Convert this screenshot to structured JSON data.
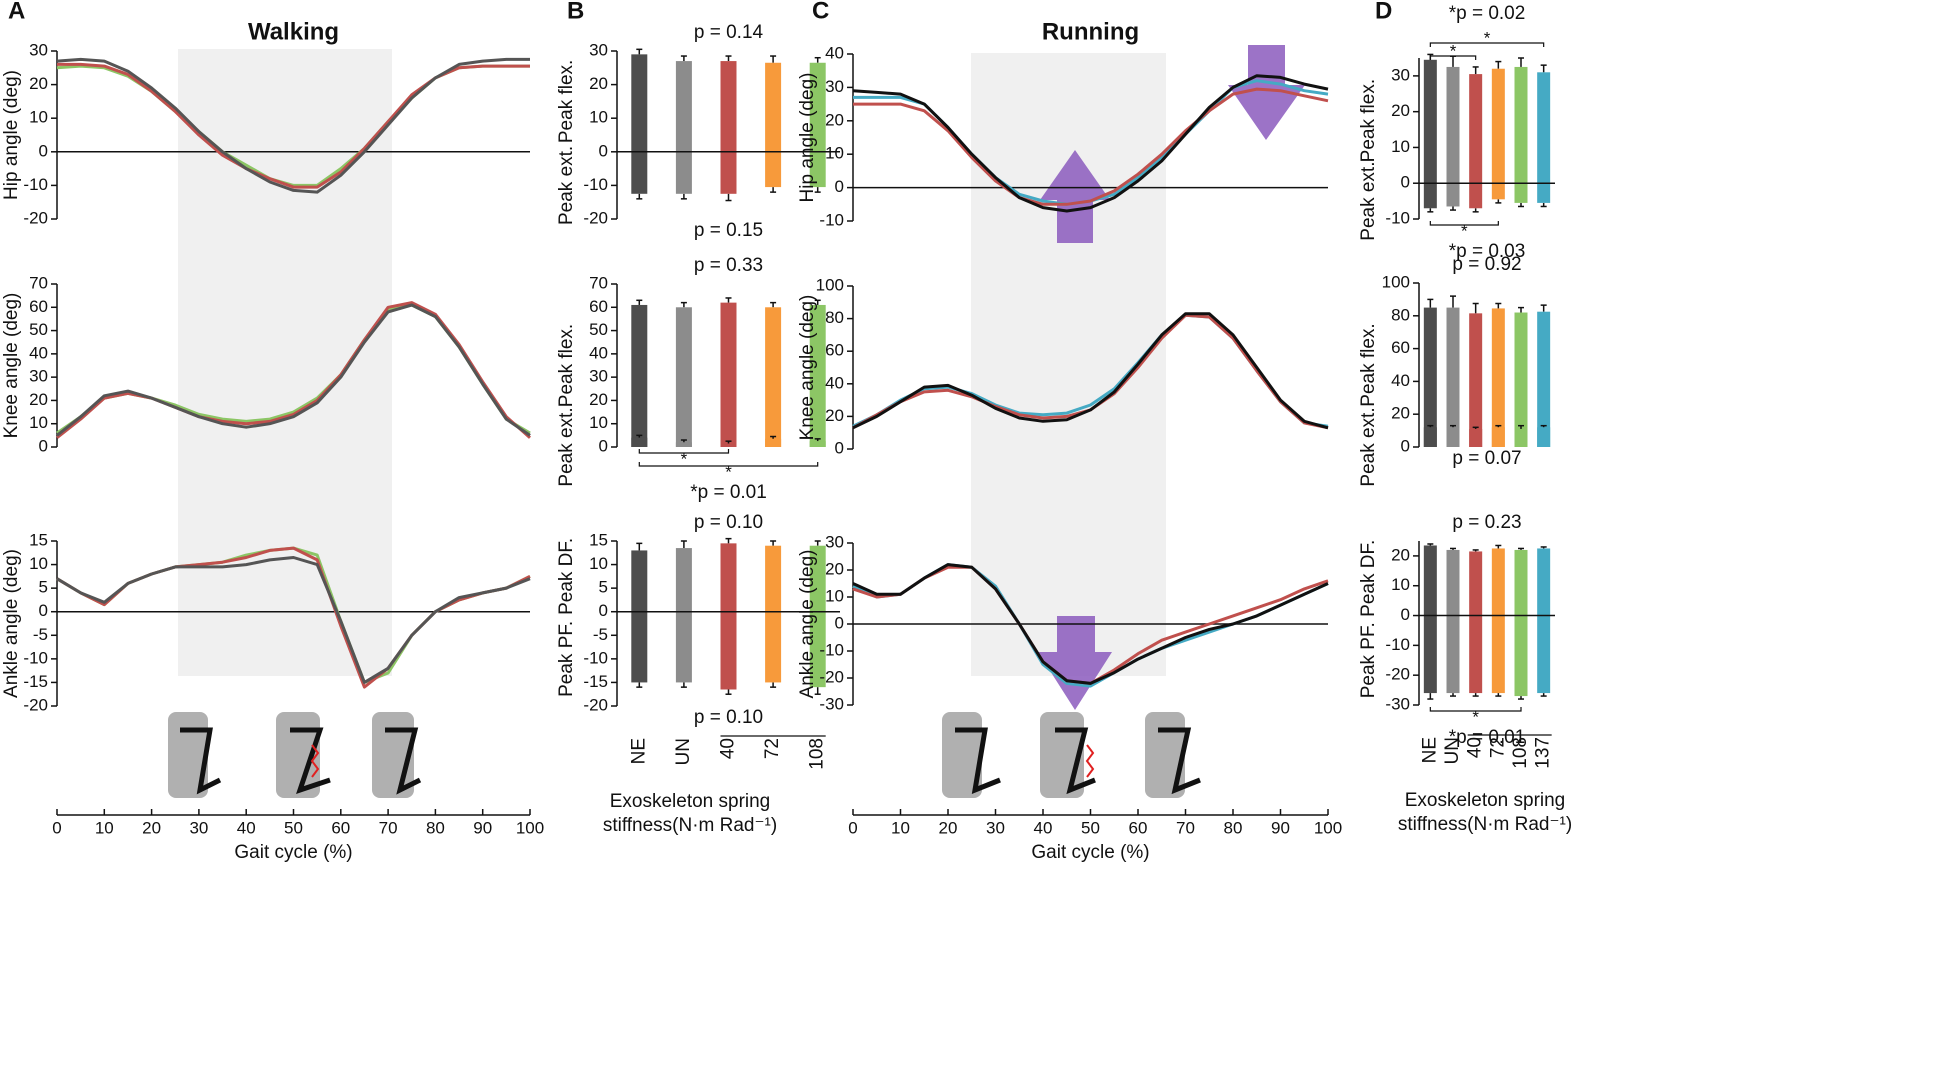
{
  "panel_labels": [
    "A",
    "B",
    "C",
    "D"
  ],
  "chart_data": [
    {
      "type": "line",
      "title": "Walking",
      "ylabel": "Hip angle (deg)",
      "xlim": [
        0,
        100
      ],
      "ylim": [
        -20,
        30
      ],
      "yticks": [
        -20,
        -10,
        0,
        10,
        20,
        30
      ],
      "x": [
        0,
        5,
        10,
        15,
        20,
        25,
        30,
        35,
        40,
        45,
        50,
        55,
        60,
        65,
        70,
        75,
        80,
        85,
        90,
        95,
        100
      ],
      "series": [
        {
          "color": "#8cc665",
          "values": [
            25,
            25.5,
            25,
            22.5,
            18,
            12,
            6,
            0,
            -4,
            -8,
            -10,
            -10,
            -5,
            1,
            9,
            16,
            22,
            25,
            25.5,
            25.5,
            25.5
          ]
        },
        {
          "color": "#c0504d",
          "values": [
            26,
            26,
            25.5,
            23,
            18,
            12,
            5,
            -1,
            -5,
            -8,
            -10.5,
            -10.5,
            -6,
            1,
            9,
            17,
            22,
            25,
            25.5,
            25.5,
            25.5
          ]
        },
        {
          "color": "#555555",
          "values": [
            27,
            27.5,
            27,
            24,
            19,
            13,
            6,
            0,
            -5,
            -9,
            -11.5,
            -12,
            -7,
            0,
            8,
            16,
            22,
            26,
            27,
            27.5,
            27.5
          ]
        }
      ]
    },
    {
      "type": "line",
      "ylabel": "Knee angle (deg)",
      "xlim": [
        0,
        100
      ],
      "ylim": [
        0,
        70
      ],
      "yticks": [
        0,
        10,
        20,
        30,
        40,
        50,
        60,
        70
      ],
      "x": [
        0,
        5,
        10,
        15,
        20,
        25,
        30,
        35,
        40,
        45,
        50,
        55,
        60,
        65,
        70,
        75,
        80,
        85,
        90,
        95,
        100
      ],
      "series": [
        {
          "color": "#8cc665",
          "values": [
            6,
            13,
            21,
            23,
            21,
            18,
            14,
            12,
            11,
            12,
            15,
            21,
            31,
            46,
            59,
            61,
            56,
            43,
            27,
            12,
            6
          ]
        },
        {
          "color": "#c0504d",
          "values": [
            4,
            12,
            21,
            23,
            21,
            17,
            13,
            11,
            10,
            11,
            14,
            20,
            31,
            46,
            60,
            62,
            57,
            44,
            28,
            13,
            4
          ]
        },
        {
          "color": "#555555",
          "values": [
            5,
            13,
            22,
            24,
            21,
            17,
            13,
            10,
            8.5,
            10,
            13,
            19,
            30,
            45,
            58,
            61,
            56,
            43,
            27,
            12,
            5
          ]
        }
      ]
    },
    {
      "type": "line",
      "ylabel": "Ankle angle (deg)",
      "xlabel": "Gait cycle (%)",
      "xlim": [
        0,
        100
      ],
      "xticks": [
        0,
        10,
        20,
        30,
        40,
        50,
        60,
        70,
        80,
        90,
        100
      ],
      "ylim": [
        -20,
        15
      ],
      "yticks": [
        -20,
        -15,
        -10,
        -5,
        0,
        5,
        10,
        15
      ],
      "x": [
        0,
        5,
        10,
        15,
        20,
        25,
        30,
        35,
        40,
        45,
        50,
        55,
        60,
        65,
        70,
        75,
        80,
        85,
        90,
        95,
        100
      ],
      "series": [
        {
          "color": "#8cc665",
          "values": [
            7,
            4,
            1.5,
            6,
            8,
            9.5,
            10,
            10.5,
            12,
            13,
            13.5,
            12,
            -2,
            -15,
            -13,
            -5,
            0,
            2.5,
            4,
            5,
            7.5
          ]
        },
        {
          "color": "#c0504d",
          "values": [
            7,
            4,
            1.5,
            6,
            8,
            9.5,
            10,
            10.5,
            11.5,
            13,
            13.5,
            11,
            -3,
            -16,
            -12,
            -5,
            0,
            2.5,
            4,
            5,
            7.5
          ]
        },
        {
          "color": "#555555",
          "values": [
            7,
            4,
            2,
            6,
            8,
            9.5,
            9.5,
            9.5,
            10,
            11,
            11.5,
            10,
            -2,
            -15,
            -12,
            -5,
            0,
            3,
            4,
            5,
            7
          ]
        }
      ]
    },
    {
      "type": "bar",
      "ylim": [
        -20,
        30
      ],
      "yticks": [
        -20,
        -10,
        0,
        10,
        20,
        30
      ],
      "p_top": "p = 0.14",
      "p_bottom": "p = 0.15",
      "colors": [
        "#4d4d4d",
        "#8c8c8c",
        "#c0504d",
        "#f79a3b",
        "#8cc665"
      ],
      "series": [
        {
          "name": "Peak flex.",
          "values": [
            29,
            27,
            27,
            26.5,
            26.5
          ],
          "errors": [
            1.5,
            1.5,
            1.5,
            2,
            1.5
          ]
        },
        {
          "name": "Peak ext.",
          "values": [
            -12.5,
            -12.5,
            -12.5,
            -10.5,
            -10.5
          ],
          "errors": [
            1.5,
            1.5,
            2,
            1.5,
            1.5
          ]
        }
      ]
    },
    {
      "type": "bar",
      "ylim": [
        0,
        70
      ],
      "yticks": [
        0,
        10,
        20,
        30,
        40,
        50,
        60,
        70
      ],
      "p_top": "p = 0.33",
      "p_bottom": "*p = 0.01",
      "colors": [
        "#4d4d4d",
        "#8c8c8c",
        "#c0504d",
        "#f79a3b",
        "#8cc665"
      ],
      "significance": [
        {
          "pair": [
            "NE",
            "40"
          ],
          "label": "*",
          "side": "bottom"
        },
        {
          "pair": [
            "NE",
            "108"
          ],
          "label": "*",
          "side": "bottom"
        }
      ],
      "series": [
        {
          "name": "Peak flex.",
          "values": [
            61,
            60,
            62,
            60,
            61
          ],
          "errors": [
            2,
            2,
            2,
            2,
            2
          ]
        },
        {
          "name": "Peak ext.",
          "values": [
            4,
            2,
            1.5,
            3.5,
            2.5
          ],
          "errors": [
            1,
            1,
            1,
            1,
            1
          ]
        }
      ]
    },
    {
      "type": "bar",
      "ylim": [
        -20,
        15
      ],
      "yticks": [
        -20,
        -15,
        -10,
        -5,
        0,
        5,
        10,
        15
      ],
      "p_top": "p = 0.10",
      "p_bottom": "p = 0.10",
      "categories": [
        "NE",
        "UN",
        "40",
        "72",
        "108"
      ],
      "xlabel": [
        "Exoskeleton spring",
        "stiffness(N·m Rad⁻¹)"
      ],
      "colors": [
        "#4d4d4d",
        "#8c8c8c",
        "#c0504d",
        "#f79a3b",
        "#8cc665"
      ],
      "series": [
        {
          "name": "Peak DF.",
          "values": [
            13,
            13.5,
            14.5,
            14,
            14
          ],
          "errors": [
            1.5,
            1.5,
            1,
            1,
            1
          ]
        },
        {
          "name": "Peak PF.",
          "values": [
            -15,
            -15,
            -16.5,
            -15,
            -16
          ],
          "errors": [
            1,
            1,
            1,
            1,
            1.5
          ]
        }
      ]
    },
    {
      "type": "line",
      "title": "Running",
      "ylabel": "Hip angle (deg)",
      "xlim": [
        0,
        100
      ],
      "ylim": [
        -10,
        40
      ],
      "yticks": [
        -10,
        0,
        10,
        20,
        30,
        40
      ],
      "x": [
        0,
        5,
        10,
        15,
        20,
        25,
        30,
        35,
        40,
        45,
        50,
        55,
        60,
        65,
        70,
        75,
        80,
        85,
        90,
        95,
        100
      ],
      "series": [
        {
          "color": "#45aac4",
          "values": [
            27,
            27,
            27,
            25,
            18,
            10,
            3,
            -2,
            -4,
            -5,
            -4,
            -2,
            3,
            9,
            16,
            23,
            30,
            32,
            31,
            29,
            28
          ]
        },
        {
          "color": "#c0504d",
          "values": [
            25,
            25,
            25,
            23,
            17,
            9,
            2,
            -3,
            -5,
            -5,
            -4,
            -1,
            4,
            10,
            17,
            23,
            28,
            29.5,
            29,
            27.5,
            26
          ]
        },
        {
          "color": "#111111",
          "values": [
            29,
            28.5,
            28,
            25,
            18,
            10,
            3,
            -3,
            -6,
            -7,
            -6,
            -3,
            2,
            8,
            16,
            24,
            30,
            33.5,
            33,
            31,
            29.5
          ]
        }
      ]
    },
    {
      "type": "line",
      "ylabel": "Knee angle (deg)",
      "xlim": [
        0,
        100
      ],
      "ylim": [
        0,
        100
      ],
      "yticks": [
        0,
        20,
        40,
        60,
        80,
        100
      ],
      "x": [
        0,
        5,
        10,
        15,
        20,
        25,
        30,
        35,
        40,
        45,
        50,
        55,
        60,
        65,
        70,
        75,
        80,
        85,
        90,
        95,
        100
      ],
      "series": [
        {
          "color": "#45aac4",
          "values": [
            14,
            21,
            30,
            37,
            38,
            34,
            27,
            22,
            21,
            22,
            27,
            37,
            53,
            70,
            82,
            81,
            68,
            48,
            29,
            16,
            14
          ]
        },
        {
          "color": "#c0504d",
          "values": [
            13,
            21,
            29,
            35,
            36,
            32,
            26,
            21,
            19,
            20,
            24,
            34,
            50,
            68,
            82,
            81,
            68,
            48,
            29,
            16,
            13
          ]
        },
        {
          "color": "#111111",
          "values": [
            13,
            20,
            29,
            38,
            39,
            33,
            25,
            19,
            17,
            18,
            24,
            35,
            52,
            70,
            83,
            83,
            70,
            50,
            30,
            17,
            13
          ]
        }
      ]
    },
    {
      "type": "line",
      "ylabel": "Ankle angle (deg)",
      "xlabel": "Gait cycle (%)",
      "xlim": [
        0,
        100
      ],
      "xticks": [
        0,
        10,
        20,
        30,
        40,
        50,
        60,
        70,
        80,
        90,
        100
      ],
      "ylim": [
        -30,
        30
      ],
      "yticks": [
        -30,
        -20,
        -10,
        0,
        10,
        20,
        30
      ],
      "x": [
        0,
        5,
        10,
        15,
        20,
        25,
        30,
        35,
        40,
        45,
        50,
        55,
        60,
        65,
        70,
        75,
        80,
        85,
        90,
        95,
        100
      ],
      "series": [
        {
          "color": "#45aac4",
          "values": [
            14,
            10,
            11,
            17,
            22,
            21,
            14,
            0,
            -15,
            -22,
            -23,
            -18,
            -13,
            -9,
            -6,
            -3,
            0,
            3,
            7,
            11,
            15
          ]
        },
        {
          "color": "#c0504d",
          "values": [
            13,
            10,
            11,
            17,
            21,
            21,
            13,
            0,
            -14,
            -21,
            -22,
            -17,
            -11,
            -6,
            -3,
            0,
            3,
            6,
            9,
            13,
            16
          ]
        },
        {
          "color": "#111111",
          "values": [
            15,
            11,
            11,
            17,
            22,
            21,
            13,
            0,
            -14,
            -21,
            -22,
            -18,
            -13,
            -9,
            -5,
            -2,
            0,
            3,
            7,
            11,
            15
          ]
        }
      ]
    },
    {
      "type": "bar",
      "ylim": [
        -10,
        35
      ],
      "yticks": [
        -10,
        0,
        10,
        20,
        30
      ],
      "p_top": "*p = 0.02",
      "p_bottom": "*p = 0.03",
      "colors": [
        "#4d4d4d",
        "#8c8c8c",
        "#c0504d",
        "#f79a3b",
        "#8cc665",
        "#45aac4"
      ],
      "significance": [
        {
          "pair": [
            "NE",
            "40"
          ],
          "label": "*",
          "side": "top"
        },
        {
          "pair": [
            "NE",
            "137"
          ],
          "label": "*",
          "side": "top"
        },
        {
          "pair": [
            "NE",
            "72"
          ],
          "label": "*",
          "side": "bottom"
        }
      ],
      "series": [
        {
          "name": "Peak flex.",
          "values": [
            34.5,
            32.5,
            30.5,
            32,
            32.5,
            31
          ],
          "errors": [
            1.5,
            3,
            2,
            2,
            2.5,
            2
          ]
        },
        {
          "name": "Peak ext.",
          "values": [
            -7,
            -6.5,
            -7,
            -4.5,
            -5.5,
            -5.5
          ],
          "errors": [
            1,
            1,
            1,
            1,
            1,
            1
          ]
        }
      ]
    },
    {
      "type": "bar",
      "ylim": [
        0,
        100
      ],
      "yticks": [
        0,
        20,
        40,
        60,
        80,
        100
      ],
      "p_top": "p = 0.92",
      "p_bottom": "p = 0.07",
      "colors": [
        "#4d4d4d",
        "#8c8c8c",
        "#c0504d",
        "#f79a3b",
        "#8cc665",
        "#45aac4"
      ],
      "series": [
        {
          "name": "Peak flex.",
          "values": [
            85,
            85,
            81.5,
            84.5,
            82,
            82.5
          ],
          "errors": [
            5,
            7,
            6,
            3,
            3,
            4
          ]
        },
        {
          "name": "Peak ext.",
          "values": [
            12,
            12,
            11,
            12,
            11,
            12
          ],
          "errors": [
            1,
            1,
            1,
            1,
            2,
            1
          ]
        }
      ]
    },
    {
      "type": "bar",
      "ylim": [
        -30,
        25
      ],
      "yticks": [
        -30,
        -20,
        -10,
        0,
        10,
        20
      ],
      "p_top": "p = 0.23",
      "p_bottom": "*p = 0.01",
      "categories": [
        "NE",
        "UN",
        "40",
        "72",
        "108",
        "137"
      ],
      "xlabel": [
        "Exoskeleton spring",
        "stiffness(N·m Rad⁻¹)"
      ],
      "colors": [
        "#4d4d4d",
        "#8c8c8c",
        "#c0504d",
        "#f79a3b",
        "#8cc665",
        "#45aac4"
      ],
      "significance": [
        {
          "pair": [
            "NE",
            "108"
          ],
          "label": "*",
          "side": "bottom"
        }
      ],
      "series": [
        {
          "name": "Peak DF.",
          "values": [
            23.5,
            22,
            21.5,
            22.5,
            22,
            22.5
          ],
          "errors": [
            0.5,
            0.5,
            0.5,
            1,
            0.5,
            0.5
          ]
        },
        {
          "name": "Peak PF.",
          "values": [
            -26,
            -26,
            -26,
            -26,
            -27,
            -26
          ],
          "errors": [
            2,
            1,
            1,
            1,
            1,
            1
          ]
        }
      ]
    }
  ]
}
